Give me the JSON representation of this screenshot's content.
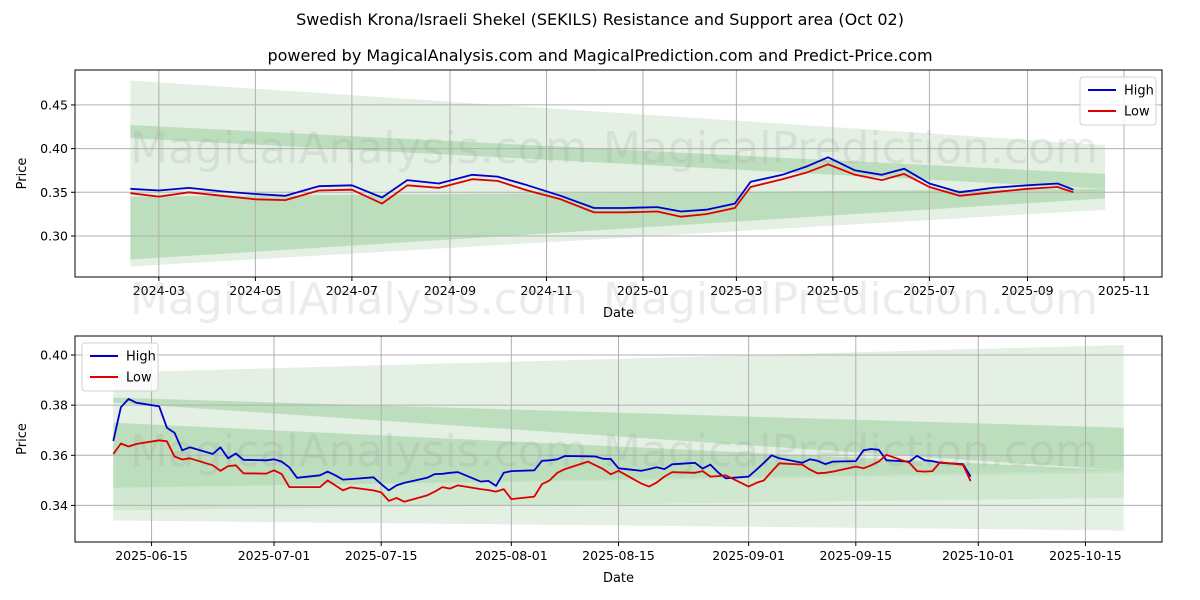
{
  "title": "Swedish Krona/Israeli Shekel (SEKILS) Resistance and Support area (Oct 02)",
  "subtitle": "powered by MagicalAnalysis.com and MagicalPrediction.com and Predict-Price.com",
  "watermarks": [
    "MagicalAnalysis.com",
    "MagicalPrediction.com"
  ],
  "colors": {
    "high": "#0000cc",
    "low": "#dd0000",
    "band_light": "#d4ead4",
    "band_mid": "#a9d5a9"
  },
  "chart_data": [
    {
      "type": "line",
      "title": "",
      "xlabel": "Date",
      "ylabel": "Price",
      "ylim": [
        0.253,
        0.49
      ],
      "yticks": [
        0.3,
        0.35,
        0.4,
        0.45
      ],
      "ytick_labels": [
        "0.30",
        "0.35",
        "0.40",
        "0.45"
      ],
      "xticks": [
        "2024-03",
        "2024-05",
        "2024-07",
        "2024-09",
        "2024-11",
        "2025-01",
        "2025-03",
        "2025-05",
        "2025-07",
        "2025-09",
        "2025-11"
      ],
      "grid": true,
      "legend": {
        "position": "top-right",
        "entries": [
          "High",
          "Low"
        ]
      },
      "bands": [
        {
          "name": "outer",
          "x": [
            "2024-02-12",
            "2025-10-20"
          ],
          "upper": [
            0.478,
            0.404
          ],
          "lower": [
            0.265,
            0.33
          ]
        },
        {
          "name": "resistance",
          "x": [
            "2024-02-12",
            "2025-10-20"
          ],
          "upper": [
            0.427,
            0.371
          ],
          "lower": [
            0.412,
            0.354
          ]
        },
        {
          "name": "support",
          "x": [
            "2024-02-12",
            "2025-10-20"
          ],
          "upper": [
            0.345,
            0.354
          ],
          "lower": [
            0.273,
            0.343
          ]
        }
      ],
      "x": [
        "2024-02-12",
        "2024-03-01",
        "2024-03-20",
        "2024-04-10",
        "2024-05-01",
        "2024-05-20",
        "2024-06-10",
        "2024-07-01",
        "2024-07-20",
        "2024-08-05",
        "2024-08-25",
        "2024-09-15",
        "2024-10-01",
        "2024-10-20",
        "2024-11-10",
        "2024-12-01",
        "2024-12-20",
        "2025-01-10",
        "2025-01-25",
        "2025-02-10",
        "2025-02-28",
        "2025-03-10",
        "2025-03-30",
        "2025-04-15",
        "2025-04-28",
        "2025-05-15",
        "2025-06-01",
        "2025-06-15",
        "2025-07-01",
        "2025-07-20",
        "2025-08-10",
        "2025-09-01",
        "2025-09-20",
        "2025-09-30"
      ],
      "series": [
        {
          "name": "High",
          "values": [
            0.354,
            0.352,
            0.355,
            0.351,
            0.348,
            0.346,
            0.357,
            0.358,
            0.344,
            0.364,
            0.36,
            0.37,
            0.368,
            0.358,
            0.346,
            0.332,
            0.332,
            0.333,
            0.328,
            0.33,
            0.337,
            0.362,
            0.37,
            0.38,
            0.39,
            0.375,
            0.37,
            0.377,
            0.36,
            0.35,
            0.355,
            0.358,
            0.36,
            0.353
          ]
        },
        {
          "name": "Low",
          "values": [
            0.349,
            0.345,
            0.35,
            0.346,
            0.342,
            0.341,
            0.352,
            0.353,
            0.337,
            0.358,
            0.355,
            0.365,
            0.363,
            0.352,
            0.342,
            0.327,
            0.327,
            0.328,
            0.322,
            0.325,
            0.332,
            0.356,
            0.365,
            0.373,
            0.382,
            0.37,
            0.364,
            0.371,
            0.356,
            0.346,
            0.35,
            0.354,
            0.356,
            0.35
          ]
        }
      ]
    },
    {
      "type": "line",
      "title": "",
      "xlabel": "Date",
      "ylabel": "Price",
      "ylim": [
        0.3254,
        0.4076
      ],
      "yticks": [
        0.34,
        0.36,
        0.38,
        0.4
      ],
      "ytick_labels": [
        "0.34",
        "0.36",
        "0.38",
        "0.40"
      ],
      "xticks": [
        "2025-06-15",
        "2025-07-01",
        "2025-07-15",
        "2025-08-01",
        "2025-08-15",
        "2025-09-01",
        "2025-09-15",
        "2025-10-01",
        "2025-10-15"
      ],
      "grid": true,
      "legend": {
        "position": "top-left",
        "entries": [
          "High",
          "Low"
        ]
      },
      "bands": [
        {
          "name": "outer",
          "x": [
            "2025-06-10",
            "2025-10-20"
          ],
          "upper": [
            0.393,
            0.404
          ],
          "lower": [
            0.334,
            0.33
          ]
        },
        {
          "name": "resistance",
          "x": [
            "2025-06-10",
            "2025-10-20"
          ],
          "upper": [
            0.383,
            0.371
          ],
          "lower": [
            0.381,
            0.354
          ]
        },
        {
          "name": "support",
          "x": [
            "2025-06-10",
            "2025-10-20"
          ],
          "upper": [
            0.373,
            0.354
          ],
          "lower": [
            0.347,
            0.353
          ]
        },
        {
          "name": "inner-support",
          "x": [
            "2025-06-10",
            "2025-10-20"
          ],
          "upper": [
            0.347,
            0.354
          ],
          "lower": [
            0.338,
            0.343
          ]
        }
      ],
      "x": [
        "2025-06-10",
        "2025-06-11",
        "2025-06-12",
        "2025-06-13",
        "2025-06-16",
        "2025-06-17",
        "2025-06-18",
        "2025-06-19",
        "2025-06-20",
        "2025-06-23",
        "2025-06-24",
        "2025-06-25",
        "2025-06-26",
        "2025-06-27",
        "2025-06-30",
        "2025-07-01",
        "2025-07-02",
        "2025-07-03",
        "2025-07-04",
        "2025-07-07",
        "2025-07-08",
        "2025-07-09",
        "2025-07-10",
        "2025-07-11",
        "2025-07-14",
        "2025-07-15",
        "2025-07-16",
        "2025-07-17",
        "2025-07-18",
        "2025-07-21",
        "2025-07-22",
        "2025-07-23",
        "2025-07-24",
        "2025-07-25",
        "2025-07-28",
        "2025-07-29",
        "2025-07-30",
        "2025-07-31",
        "2025-08-01",
        "2025-08-04",
        "2025-08-05",
        "2025-08-06",
        "2025-08-07",
        "2025-08-08",
        "2025-08-11",
        "2025-08-12",
        "2025-08-13",
        "2025-08-14",
        "2025-08-15",
        "2025-08-18",
        "2025-08-19",
        "2025-08-20",
        "2025-08-21",
        "2025-08-22",
        "2025-08-25",
        "2025-08-26",
        "2025-08-27",
        "2025-08-28",
        "2025-08-29",
        "2025-09-01",
        "2025-09-02",
        "2025-09-03",
        "2025-09-04",
        "2025-09-05",
        "2025-09-08",
        "2025-09-09",
        "2025-09-10",
        "2025-09-11",
        "2025-09-12",
        "2025-09-15",
        "2025-09-16",
        "2025-09-17",
        "2025-09-18",
        "2025-09-19",
        "2025-09-22",
        "2025-09-23",
        "2025-09-24",
        "2025-09-25",
        "2025-09-26",
        "2025-09-29",
        "2025-09-30"
      ],
      "series": [
        {
          "name": "High",
          "values": [
            0.3657,
            0.3792,
            0.3825,
            0.381,
            0.3795,
            0.371,
            0.369,
            0.362,
            0.3632,
            0.3605,
            0.3632,
            0.3588,
            0.3607,
            0.3582,
            0.358,
            0.3584,
            0.3575,
            0.3552,
            0.351,
            0.352,
            0.3535,
            0.352,
            0.3503,
            0.3505,
            0.3512,
            0.3485,
            0.346,
            0.348,
            0.349,
            0.351,
            0.3525,
            0.3526,
            0.353,
            0.3533,
            0.3495,
            0.3498,
            0.3478,
            0.353,
            0.3537,
            0.354,
            0.3578,
            0.358,
            0.3584,
            0.3597,
            0.3596,
            0.3595,
            0.3586,
            0.3585,
            0.3548,
            0.3538,
            0.3545,
            0.3552,
            0.3545,
            0.3564,
            0.357,
            0.3547,
            0.3563,
            0.3532,
            0.3508,
            0.3515,
            0.3542,
            0.357,
            0.36,
            0.3588,
            0.357,
            0.3584,
            0.3578,
            0.3565,
            0.3575,
            0.3577,
            0.362,
            0.3625,
            0.3622,
            0.358,
            0.3575,
            0.3598,
            0.358,
            0.3577,
            0.357,
            0.3565,
            0.3515
          ]
        },
        {
          "name": "Low",
          "values": [
            0.3605,
            0.3647,
            0.3635,
            0.3645,
            0.366,
            0.3656,
            0.3595,
            0.3583,
            0.3588,
            0.356,
            0.3538,
            0.3557,
            0.356,
            0.3528,
            0.3527,
            0.354,
            0.3525,
            0.3473,
            0.3473,
            0.3473,
            0.35,
            0.348,
            0.346,
            0.3472,
            0.346,
            0.3452,
            0.3418,
            0.343,
            0.3415,
            0.344,
            0.3455,
            0.3473,
            0.3467,
            0.348,
            0.3465,
            0.3461,
            0.3455,
            0.3465,
            0.3425,
            0.3435,
            0.3485,
            0.35,
            0.353,
            0.3545,
            0.3575,
            0.356,
            0.3545,
            0.3524,
            0.3538,
            0.3487,
            0.3475,
            0.3492,
            0.3515,
            0.3533,
            0.353,
            0.3537,
            0.3515,
            0.3517,
            0.352,
            0.3475,
            0.349,
            0.35,
            0.3535,
            0.3568,
            0.3563,
            0.3543,
            0.3528,
            0.353,
            0.3535,
            0.3555,
            0.3548,
            0.356,
            0.3575,
            0.3602,
            0.357,
            0.3537,
            0.3535,
            0.3537,
            0.3572,
            0.3562,
            0.3497
          ]
        }
      ]
    }
  ]
}
